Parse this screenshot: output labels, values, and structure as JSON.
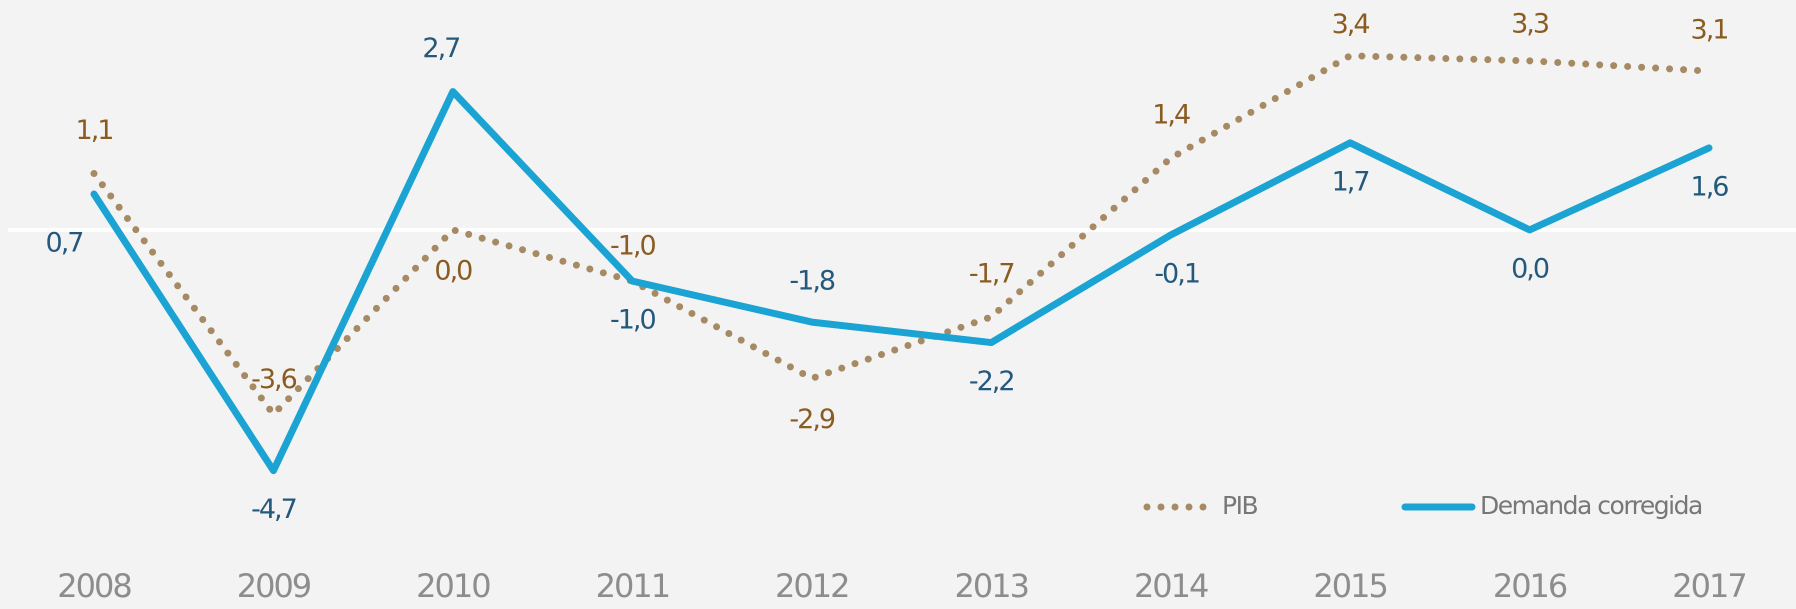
{
  "chart_data": {
    "type": "line",
    "categories": [
      "2008",
      "2009",
      "2010",
      "2011",
      "2012",
      "2013",
      "2014",
      "2015",
      "2016",
      "2017"
    ],
    "series": [
      {
        "name": "PIB",
        "color": "#a58a64",
        "style": "dotted",
        "label_color": "#8a5c22",
        "values": [
          1.1,
          -3.6,
          0.0,
          -1.0,
          -2.9,
          -1.7,
          1.4,
          3.4,
          3.3,
          3.1
        ],
        "value_labels": [
          "1,1",
          "-3,6",
          "0,0",
          "-1,0",
          "-2,9",
          "-1,7",
          "1,4",
          "3,4",
          "3,3",
          "3,1"
        ]
      },
      {
        "name": "Demanda corregida",
        "color": "#1ba3d3",
        "style": "solid",
        "label_color": "#24597e",
        "values": [
          0.7,
          -4.7,
          2.7,
          -1.0,
          -1.8,
          -2.2,
          -0.1,
          1.7,
          0.0,
          1.6
        ],
        "value_labels": [
          "0,7",
          "-4,7",
          "2,7",
          "-1,0",
          "-1,8",
          "-2,2",
          "-0,1",
          "1,7",
          "0,0",
          "1,6"
        ]
      }
    ],
    "ylim": [
      -5,
      4
    ],
    "zero_line": true,
    "legend": "bottom-right"
  }
}
